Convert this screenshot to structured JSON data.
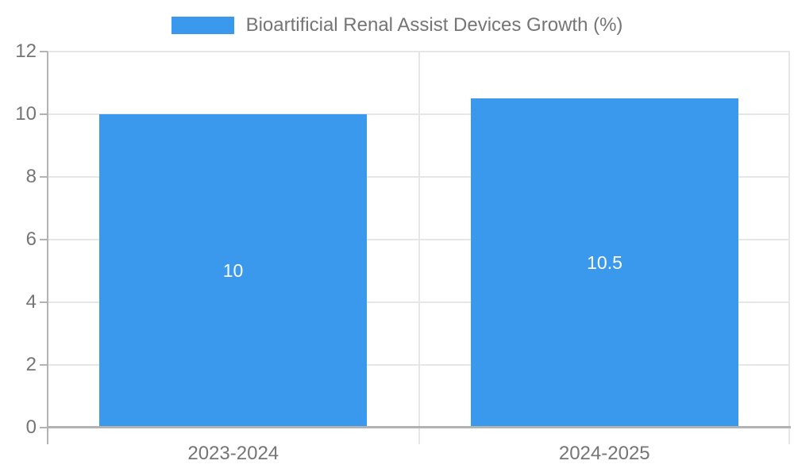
{
  "chart_data": {
    "type": "bar",
    "title": "Bioartificial Renal Assist Devices Growth (%)",
    "categories": [
      "2023-2024",
      "2024-2025"
    ],
    "series": [
      {
        "name": "Bioartificial Renal Assist Devices Growth (%)",
        "values": [
          10,
          10.5
        ]
      }
    ],
    "value_labels": [
      "10",
      "10.5"
    ],
    "xlabel": "",
    "ylabel": "",
    "ylim": [
      0,
      12
    ],
    "yticks": [
      0,
      2,
      4,
      6,
      8,
      10,
      12
    ],
    "grid": true,
    "legend_position": "top",
    "colors": {
      "bar": "#3a99ec",
      "grid": "#e6e6e6",
      "axis": "#b3b3b3",
      "text": "#757575",
      "bar_label": "#ffffff",
      "background": "#ffffff"
    }
  }
}
